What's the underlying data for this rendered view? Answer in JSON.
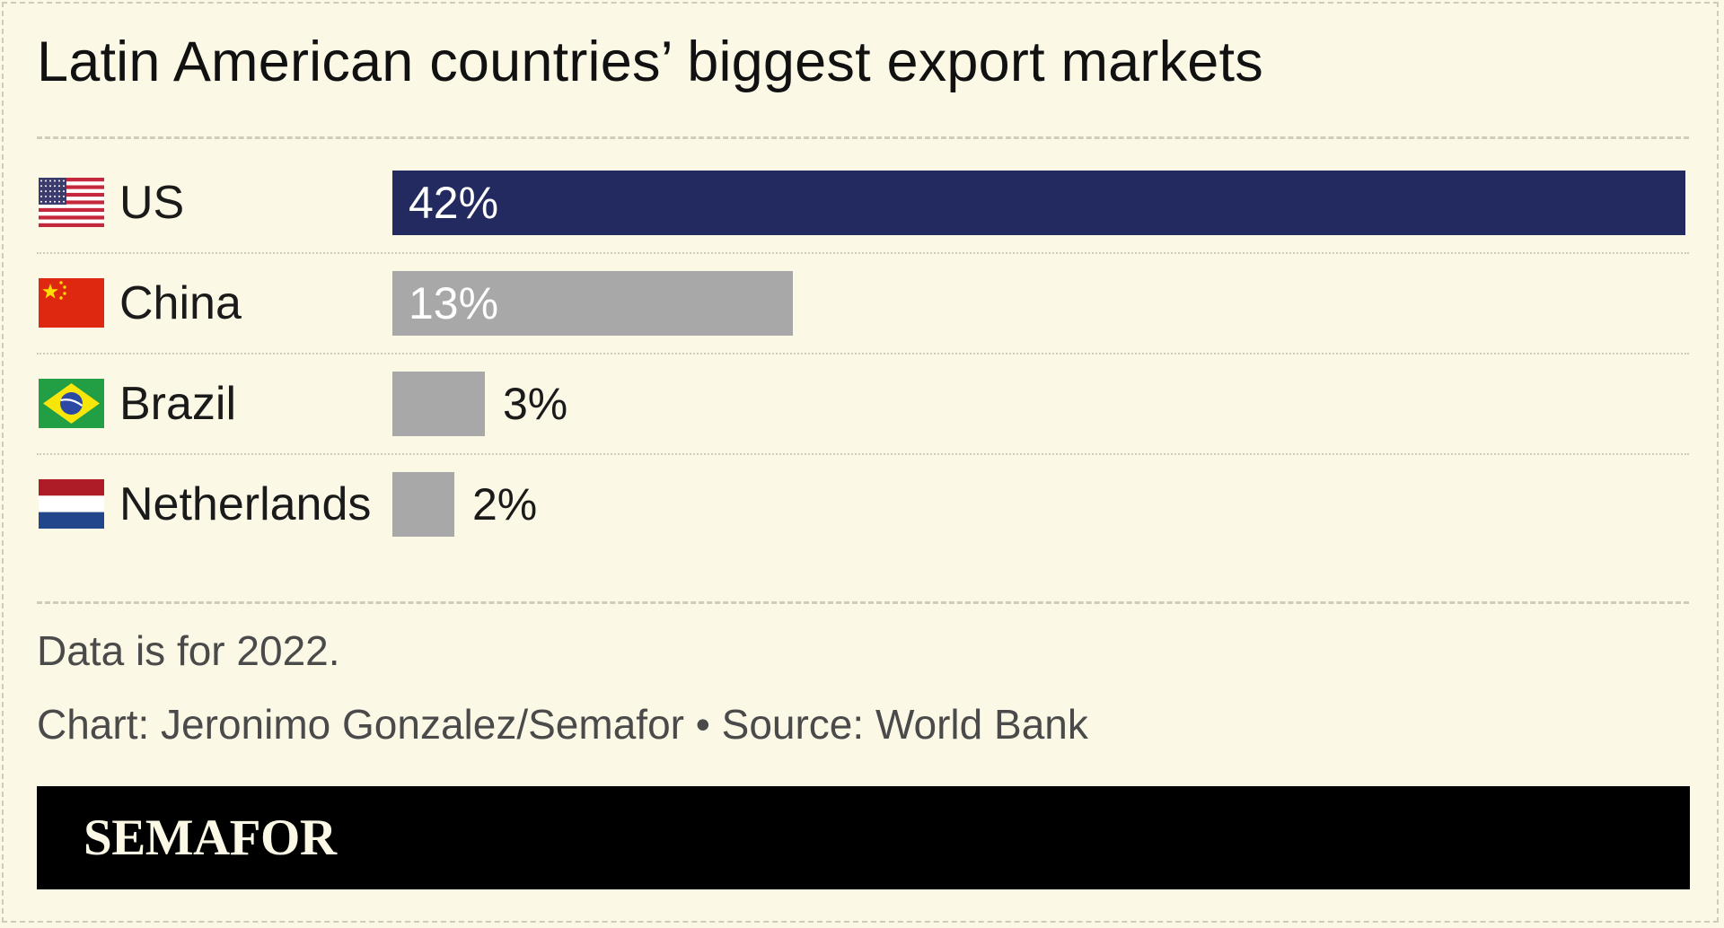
{
  "title": "Latin American countries’ biggest export markets",
  "chart_data": {
    "type": "bar",
    "orientation": "horizontal",
    "categories": [
      "US",
      "China",
      "Brazil",
      "Netherlands"
    ],
    "values": [
      42,
      13,
      3,
      2
    ],
    "labels": [
      "42%",
      "13%",
      "3%",
      "2%"
    ],
    "unit": "%",
    "xlim": [
      0,
      42
    ],
    "grid": false,
    "legend": "none",
    "colors": {
      "highlight": "#222a60",
      "default": "#a8a8a8"
    },
    "highlight_index": 0,
    "flags": [
      "us-flag-icon",
      "china-flag-icon",
      "brazil-flag-icon",
      "netherlands-flag-icon"
    ]
  },
  "notes": {
    "data_note": "Data is for 2022.",
    "credit": "Chart: Jeronimo Gonzalez/Semafor • Source: World Bank"
  },
  "footer": {
    "brand": "SEMAFOR"
  }
}
